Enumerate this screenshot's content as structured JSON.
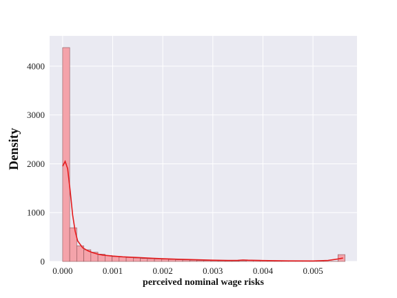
{
  "chart_data": {
    "type": "bar",
    "subtype": "histogram-with-kde",
    "title": "",
    "xlabel": "perceived nominal wage risks",
    "ylabel": "Density",
    "xlim": [
      -0.00026,
      0.00588
    ],
    "ylim": [
      0,
      4620
    ],
    "xticks": [
      0.0,
      0.001,
      0.002,
      0.003,
      0.004,
      0.005
    ],
    "xtick_labels": [
      "0.000",
      "0.001",
      "0.002",
      "0.003",
      "0.004",
      "0.005"
    ],
    "yticks": [
      0,
      1000,
      2000,
      3000,
      4000
    ],
    "ytick_labels": [
      "0",
      "1000",
      "2000",
      "3000",
      "4000"
    ],
    "grid": true,
    "bin_start": 0.0,
    "bin_width": 0.000141,
    "bin_densities": [
      4380,
      690,
      320,
      240,
      190,
      150,
      120,
      100,
      90,
      80,
      70,
      60,
      55,
      50,
      45,
      40,
      35,
      30,
      25,
      20,
      18,
      15,
      12,
      10,
      10,
      15,
      20,
      25,
      20,
      10,
      5,
      5,
      4,
      3,
      3,
      2,
      2,
      1,
      2,
      140
    ],
    "kde_x": [
      0.0,
      5e-05,
      0.0001,
      0.00015,
      0.0002,
      0.00025,
      0.0003,
      0.0004,
      0.0005,
      0.0006,
      0.0007,
      0.0008,
      0.001,
      0.0012,
      0.0015,
      0.0018,
      0.002,
      0.0025,
      0.003,
      0.0033,
      0.0035,
      0.0036,
      0.0037,
      0.004,
      0.0045,
      0.005,
      0.0053,
      0.0055,
      0.0056
    ],
    "kde_y": [
      1950,
      2050,
      1900,
      1450,
      950,
      620,
      420,
      280,
      220,
      180,
      150,
      130,
      110,
      95,
      80,
      65,
      55,
      40,
      25,
      20,
      22,
      30,
      25,
      18,
      12,
      10,
      20,
      50,
      70
    ],
    "colors": {
      "bar_fill": "#f4a3aa",
      "bar_edge": "#8c5257",
      "kde_line": "#e41a1c",
      "plot_background": "#eaeaf2",
      "grid": "#ffffff"
    }
  }
}
